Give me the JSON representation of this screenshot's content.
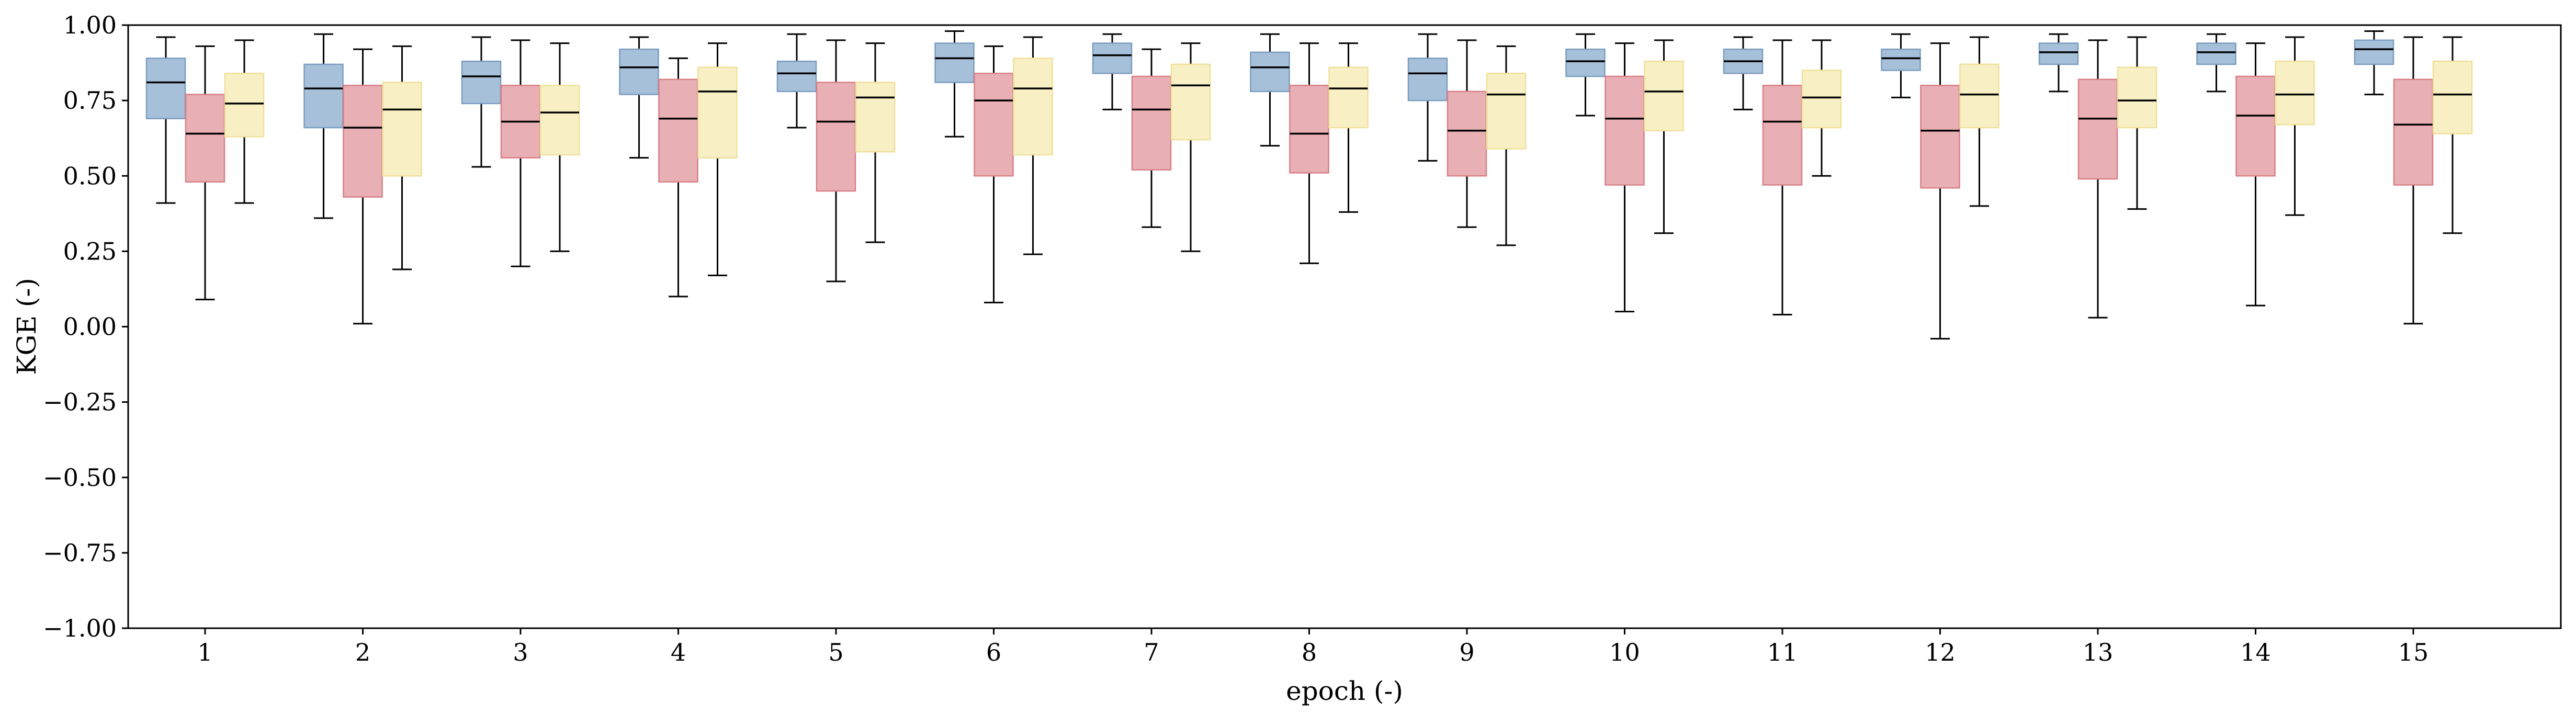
{
  "chart_data": {
    "type": "box",
    "xlabel": "epoch (-)",
    "ylabel": "KGE (-)",
    "ylim": [
      -1.0,
      1.0
    ],
    "yticks": [
      "−1.00",
      "−0.75",
      "−0.50",
      "−0.25",
      "0.00",
      "0.25",
      "0.50",
      "0.75",
      "1.00"
    ],
    "ytick_values": [
      -1.0,
      -0.75,
      -0.5,
      -0.25,
      0.0,
      0.25,
      0.5,
      0.75,
      1.0
    ],
    "categories": [
      "1",
      "2",
      "3",
      "4",
      "5",
      "6",
      "7",
      "8",
      "9",
      "10",
      "11",
      "12",
      "13",
      "14",
      "15"
    ],
    "grid": false,
    "series": [
      {
        "color": "#a7c0d9",
        "edge": "#7a9cc0",
        "boxes": [
          {
            "whislo": 0.41,
            "q1": 0.69,
            "med": 0.81,
            "q3": 0.89,
            "whishi": 0.96
          },
          {
            "whislo": 0.36,
            "q1": 0.66,
            "med": 0.79,
            "q3": 0.87,
            "whishi": 0.97
          },
          {
            "whislo": 0.53,
            "q1": 0.74,
            "med": 0.83,
            "q3": 0.88,
            "whishi": 0.96
          },
          {
            "whislo": 0.56,
            "q1": 0.77,
            "med": 0.86,
            "q3": 0.92,
            "whishi": 0.96
          },
          {
            "whislo": 0.66,
            "q1": 0.78,
            "med": 0.84,
            "q3": 0.88,
            "whishi": 0.97
          },
          {
            "whislo": 0.63,
            "q1": 0.81,
            "med": 0.89,
            "q3": 0.94,
            "whishi": 0.98
          },
          {
            "whislo": 0.72,
            "q1": 0.84,
            "med": 0.9,
            "q3": 0.94,
            "whishi": 0.97
          },
          {
            "whislo": 0.6,
            "q1": 0.78,
            "med": 0.86,
            "q3": 0.91,
            "whishi": 0.97
          },
          {
            "whislo": 0.55,
            "q1": 0.75,
            "med": 0.84,
            "q3": 0.89,
            "whishi": 0.97
          },
          {
            "whislo": 0.7,
            "q1": 0.83,
            "med": 0.88,
            "q3": 0.92,
            "whishi": 0.97
          },
          {
            "whislo": 0.72,
            "q1": 0.84,
            "med": 0.88,
            "q3": 0.92,
            "whishi": 0.96
          },
          {
            "whislo": 0.76,
            "q1": 0.85,
            "med": 0.89,
            "q3": 0.92,
            "whishi": 0.97
          },
          {
            "whislo": 0.78,
            "q1": 0.87,
            "med": 0.91,
            "q3": 0.94,
            "whishi": 0.97
          },
          {
            "whislo": 0.78,
            "q1": 0.87,
            "med": 0.91,
            "q3": 0.94,
            "whishi": 0.97
          },
          {
            "whislo": 0.77,
            "q1": 0.87,
            "med": 0.92,
            "q3": 0.95,
            "whishi": 0.98
          }
        ]
      },
      {
        "color": "#e8b0b4",
        "edge": "#d87f86",
        "boxes": [
          {
            "whislo": 0.09,
            "q1": 0.48,
            "med": 0.64,
            "q3": 0.77,
            "whishi": 0.93
          },
          {
            "whislo": 0.01,
            "q1": 0.43,
            "med": 0.66,
            "q3": 0.8,
            "whishi": 0.92
          },
          {
            "whislo": 0.2,
            "q1": 0.56,
            "med": 0.68,
            "q3": 0.8,
            "whishi": 0.95
          },
          {
            "whislo": 0.1,
            "q1": 0.48,
            "med": 0.69,
            "q3": 0.82,
            "whishi": 0.89
          },
          {
            "whislo": 0.15,
            "q1": 0.45,
            "med": 0.68,
            "q3": 0.81,
            "whishi": 0.95
          },
          {
            "whislo": 0.08,
            "q1": 0.5,
            "med": 0.75,
            "q3": 0.84,
            "whishi": 0.93
          },
          {
            "whislo": 0.33,
            "q1": 0.52,
            "med": 0.72,
            "q3": 0.83,
            "whishi": 0.92
          },
          {
            "whislo": 0.21,
            "q1": 0.51,
            "med": 0.64,
            "q3": 0.8,
            "whishi": 0.94
          },
          {
            "whislo": 0.33,
            "q1": 0.5,
            "med": 0.65,
            "q3": 0.78,
            "whishi": 0.95
          },
          {
            "whislo": 0.05,
            "q1": 0.47,
            "med": 0.69,
            "q3": 0.83,
            "whishi": 0.94
          },
          {
            "whislo": 0.04,
            "q1": 0.47,
            "med": 0.68,
            "q3": 0.8,
            "whishi": 0.95
          },
          {
            "whislo": -0.04,
            "q1": 0.46,
            "med": 0.65,
            "q3": 0.8,
            "whishi": 0.94
          },
          {
            "whislo": 0.03,
            "q1": 0.49,
            "med": 0.69,
            "q3": 0.82,
            "whishi": 0.95
          },
          {
            "whislo": 0.07,
            "q1": 0.5,
            "med": 0.7,
            "q3": 0.83,
            "whishi": 0.94
          },
          {
            "whislo": 0.01,
            "q1": 0.47,
            "med": 0.67,
            "q3": 0.82,
            "whishi": 0.96
          }
        ]
      },
      {
        "color": "#f8f0c4",
        "edge": "#efe09a",
        "boxes": [
          {
            "whislo": 0.41,
            "q1": 0.63,
            "med": 0.74,
            "q3": 0.84,
            "whishi": 0.95
          },
          {
            "whislo": 0.19,
            "q1": 0.5,
            "med": 0.72,
            "q3": 0.81,
            "whishi": 0.93
          },
          {
            "whislo": 0.25,
            "q1": 0.57,
            "med": 0.71,
            "q3": 0.8,
            "whishi": 0.94
          },
          {
            "whislo": 0.17,
            "q1": 0.56,
            "med": 0.78,
            "q3": 0.86,
            "whishi": 0.94
          },
          {
            "whislo": 0.28,
            "q1": 0.58,
            "med": 0.76,
            "q3": 0.81,
            "whishi": 0.94
          },
          {
            "whislo": 0.24,
            "q1": 0.57,
            "med": 0.79,
            "q3": 0.89,
            "whishi": 0.96
          },
          {
            "whislo": 0.25,
            "q1": 0.62,
            "med": 0.8,
            "q3": 0.87,
            "whishi": 0.94
          },
          {
            "whislo": 0.38,
            "q1": 0.66,
            "med": 0.79,
            "q3": 0.86,
            "whishi": 0.94
          },
          {
            "whislo": 0.27,
            "q1": 0.59,
            "med": 0.77,
            "q3": 0.84,
            "whishi": 0.93
          },
          {
            "whislo": 0.31,
            "q1": 0.65,
            "med": 0.78,
            "q3": 0.88,
            "whishi": 0.95
          },
          {
            "whislo": 0.5,
            "q1": 0.66,
            "med": 0.76,
            "q3": 0.85,
            "whishi": 0.95
          },
          {
            "whislo": 0.4,
            "q1": 0.66,
            "med": 0.77,
            "q3": 0.87,
            "whishi": 0.96
          },
          {
            "whislo": 0.39,
            "q1": 0.66,
            "med": 0.75,
            "q3": 0.86,
            "whishi": 0.96
          },
          {
            "whislo": 0.37,
            "q1": 0.67,
            "med": 0.77,
            "q3": 0.88,
            "whishi": 0.96
          },
          {
            "whislo": 0.31,
            "q1": 0.64,
            "med": 0.77,
            "q3": 0.88,
            "whishi": 0.96
          }
        ]
      }
    ]
  }
}
